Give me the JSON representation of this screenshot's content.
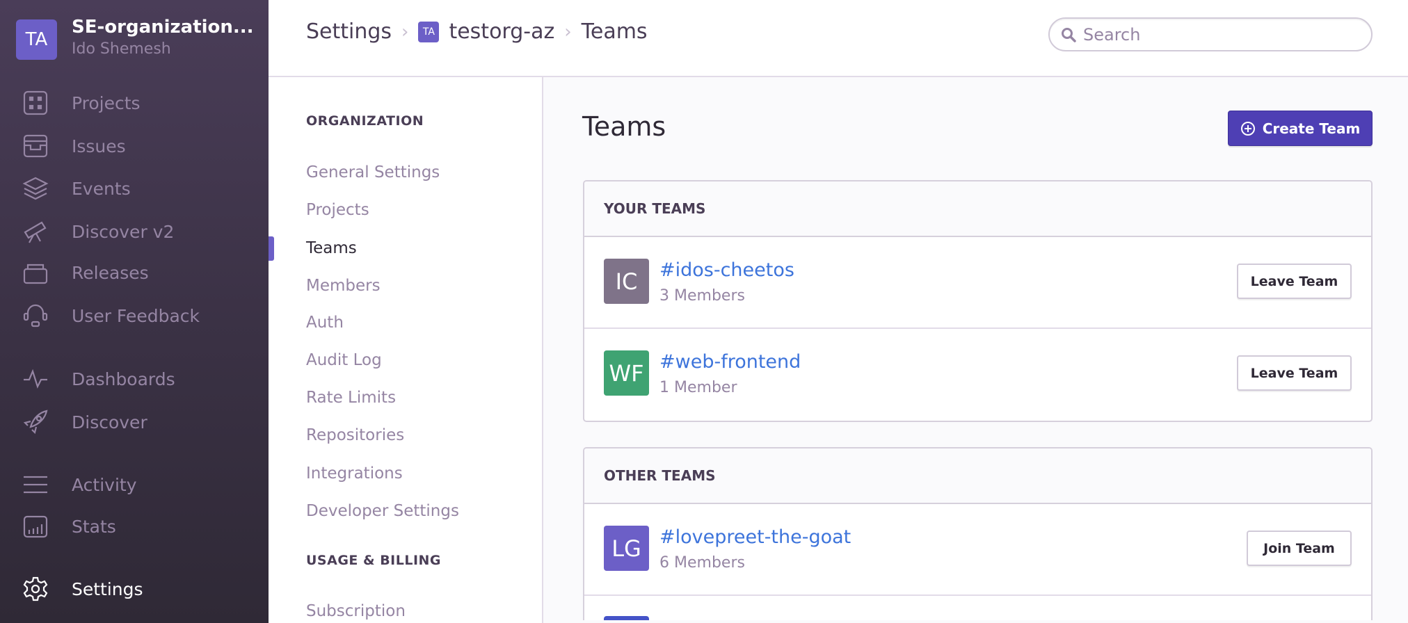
{
  "sidebar": {
    "org_initials": "TA",
    "org_name": "SE-organization...",
    "user_name": "Ido Shemesh",
    "items": [
      {
        "label": "Projects",
        "icon": "projects-icon"
      },
      {
        "label": "Issues",
        "icon": "issues-icon"
      },
      {
        "label": "Events",
        "icon": "layers-icon"
      },
      {
        "label": "Discover v2",
        "icon": "telescope-icon"
      },
      {
        "label": "Releases",
        "icon": "releases-icon"
      },
      {
        "label": "User Feedback",
        "icon": "support-icon"
      },
      {
        "label": "Dashboards",
        "icon": "pulse-icon"
      },
      {
        "label": "Discover",
        "icon": "rocket-icon"
      },
      {
        "label": "Activity",
        "icon": "list-icon"
      },
      {
        "label": "Stats",
        "icon": "stats-icon"
      },
      {
        "label": "Settings",
        "icon": "gear-icon",
        "active": true
      }
    ]
  },
  "header": {
    "breadcrumb": [
      "Settings",
      "testorg-az",
      "Teams"
    ],
    "org_avatar_initials": "TA",
    "search_placeholder": "Search"
  },
  "settings_nav": {
    "sections": [
      {
        "title": "ORGANIZATION",
        "items": [
          "General Settings",
          "Projects",
          "Teams",
          "Members",
          "Auth",
          "Audit Log",
          "Rate Limits",
          "Repositories",
          "Integrations",
          "Developer Settings"
        ]
      },
      {
        "title": "USAGE & BILLING",
        "items": [
          "Subscription"
        ]
      }
    ],
    "active": "Teams"
  },
  "main": {
    "title": "Teams",
    "create_button": "Create Team",
    "your_teams": {
      "header": "YOUR TEAMS",
      "teams": [
        {
          "initials": "IC",
          "name": "#idos-cheetos",
          "members": "3 Members",
          "action": "Leave Team",
          "color": "#7f7389"
        },
        {
          "initials": "WF",
          "name": "#web-frontend",
          "members": "1 Member",
          "action": "Leave Team",
          "color": "#3fa372"
        }
      ]
    },
    "other_teams": {
      "header": "OTHER TEAMS",
      "teams": [
        {
          "initials": "LG",
          "name": "#lovepreet-the-goat",
          "members": "6 Members",
          "action": "Join Team",
          "color": "#6c5fc7"
        }
      ],
      "partial_row_color": "#4453c8"
    }
  },
  "colors": {
    "accent": "#6c5fc7",
    "primary_button": "#4e3fb4",
    "link": "#3d74db"
  }
}
